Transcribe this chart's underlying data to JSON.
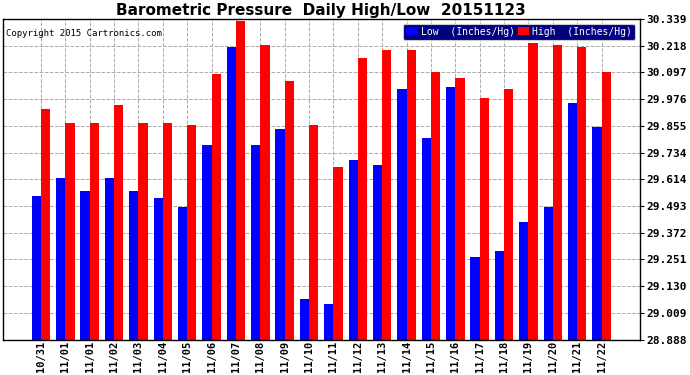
{
  "title": "Barometric Pressure  Daily High/Low  20151123",
  "copyright": "Copyright 2015 Cartronics.com",
  "categories": [
    "10/31",
    "11/01",
    "11/01",
    "11/02",
    "11/03",
    "11/04",
    "11/05",
    "11/06",
    "11/07",
    "11/08",
    "11/09",
    "11/10",
    "11/11",
    "11/12",
    "11/13",
    "11/14",
    "11/15",
    "11/16",
    "11/17",
    "11/18",
    "11/19",
    "11/20",
    "11/21",
    "11/22"
  ],
  "low_values": [
    29.54,
    29.62,
    29.56,
    29.62,
    29.56,
    29.53,
    29.49,
    29.77,
    30.21,
    29.77,
    29.84,
    29.07,
    29.05,
    29.7,
    29.68,
    30.02,
    29.8,
    30.03,
    29.26,
    29.29,
    29.42,
    29.49,
    29.96,
    29.85
  ],
  "high_values": [
    29.93,
    29.87,
    29.87,
    29.95,
    29.87,
    29.87,
    29.86,
    30.09,
    30.33,
    30.22,
    30.06,
    29.86,
    29.67,
    30.16,
    30.2,
    30.2,
    30.1,
    30.07,
    29.98,
    30.02,
    30.23,
    30.22,
    30.21,
    30.1
  ],
  "ylim_min": 28.888,
  "ylim_max": 30.339,
  "yticks": [
    28.888,
    29.009,
    29.13,
    29.251,
    29.372,
    29.493,
    29.614,
    29.734,
    29.855,
    29.976,
    30.097,
    30.218,
    30.339
  ],
  "bar_bottom": 28.888,
  "low_color": "#0000ff",
  "high_color": "#ff0000",
  "bar_width": 0.38,
  "background_color": "#ffffff",
  "grid_color": "#aaaaaa",
  "title_fontsize": 11,
  "legend_label_low": "Low  (Inches/Hg)",
  "legend_label_high": "High  (Inches/Hg)"
}
